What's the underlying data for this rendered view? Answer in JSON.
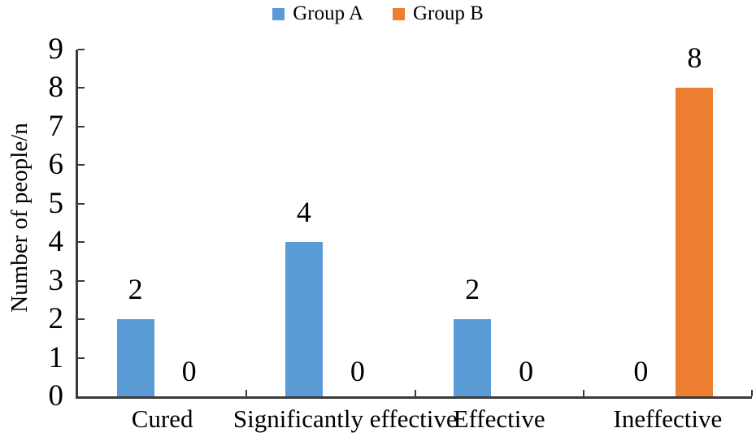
{
  "chart_data": {
    "type": "bar",
    "title": "",
    "categories": [
      "Cured",
      "Significantly effective",
      "Effective",
      "Ineffective"
    ],
    "series": [
      {
        "name": "Group A",
        "color": "#5B9BD5",
        "values": [
          2,
          4,
          2,
          0
        ]
      },
      {
        "name": "Group B",
        "color": "#ED7D31",
        "values": [
          0,
          0,
          0,
          8
        ]
      }
    ],
    "xlabel": "",
    "ylabel": "Number of people/n",
    "ylim": [
      0,
      9
    ],
    "ytick_step": 1,
    "yticks": [
      0,
      1,
      2,
      3,
      4,
      5,
      6,
      7,
      8,
      9
    ],
    "grid": false,
    "legend_position": "top",
    "bar_value_labels": true
  },
  "colors": {
    "group_a": "#5B9BD5",
    "group_b": "#ED7D31",
    "axis": "#3a3a3a",
    "text": "#000000",
    "background": "#ffffff"
  }
}
